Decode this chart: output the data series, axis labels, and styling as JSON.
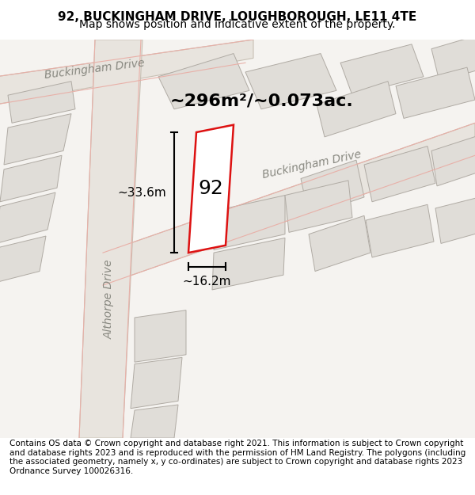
{
  "title": "92, BUCKINGHAM DRIVE, LOUGHBOROUGH, LE11 4TE",
  "subtitle": "Map shows position and indicative extent of the property.",
  "area_label": "~296m²/~0.073ac.",
  "property_number": "92",
  "dim_width": "~16.2m",
  "dim_height": "~33.6m",
  "bg_color": "#f5f3f0",
  "road_fill": "#e8e4de",
  "road_stroke": "#c8c0b4",
  "building_fill": "#e0ddd8",
  "building_stroke": "#b0aba4",
  "red_stroke": "#dd1111",
  "road_line_color": "#e8b0a8",
  "footer_text": "Contains OS data © Crown copyright and database right 2021. This information is subject to Crown copyright and database rights 2023 and is reproduced with the permission of HM Land Registry. The polygons (including the associated geometry, namely x, y co-ordinates) are subject to Crown copyright and database rights 2023 Ordnance Survey 100026316.",
  "title_fontsize": 11,
  "subtitle_fontsize": 10,
  "footer_fontsize": 7.5
}
